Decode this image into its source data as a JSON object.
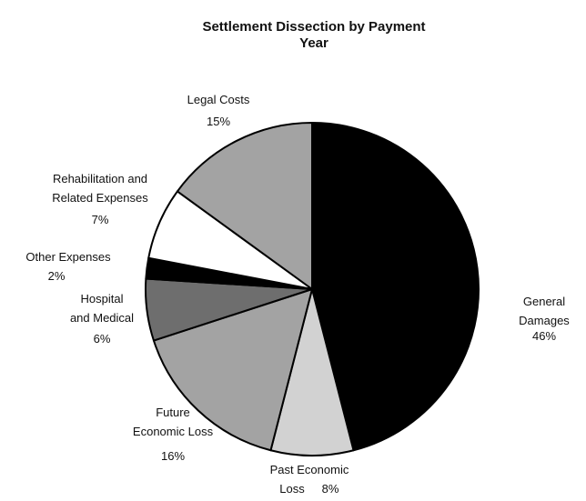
{
  "chart_data": {
    "type": "pie",
    "title": "Settlement Dissection by Payment Year",
    "categories": [
      "General Damages",
      "Past Economic Loss",
      "Future Economic Loss",
      "Hospital and Medical",
      "Other Expenses",
      "Rehabilitation and Related Expenses",
      "Legal Costs"
    ],
    "values": [
      46,
      8,
      16,
      6,
      2,
      7,
      15
    ],
    "value_labels": [
      "46%",
      "8%",
      "16%",
      "6%",
      "2%",
      "7%",
      "15%"
    ],
    "colors": [
      "#000000",
      "#d2d2d2",
      "#a3a3a3",
      "#6e6e6e",
      "#000000",
      "#ffffff",
      "#a3a3a3"
    ]
  }
}
